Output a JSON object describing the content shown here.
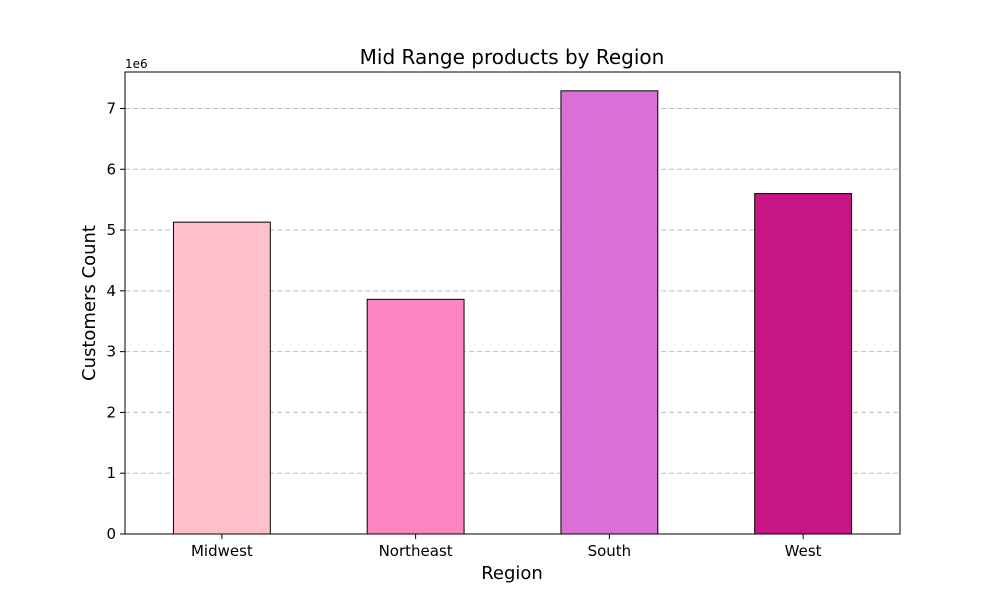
{
  "chart_data": {
    "type": "bar",
    "title": "Mid Range products by Region",
    "xlabel": "Region",
    "ylabel": "Customers Count",
    "y_offset_label": "1e6",
    "categories": [
      "Midwest",
      "Northeast",
      "South",
      "West"
    ],
    "values": [
      5130000,
      3860000,
      7290000,
      5600000
    ],
    "colors": [
      "#ffc0cb",
      "#ff85c2",
      "#da70d6",
      "#c71585"
    ],
    "ylim": [
      0,
      7600000
    ],
    "yticks": [
      0,
      1000000,
      2000000,
      3000000,
      4000000,
      5000000,
      6000000,
      7000000
    ],
    "ytick_labels": [
      "0",
      "1",
      "2",
      "3",
      "4",
      "5",
      "6",
      "7"
    ],
    "grid": "y-dashed",
    "legend": "none"
  }
}
